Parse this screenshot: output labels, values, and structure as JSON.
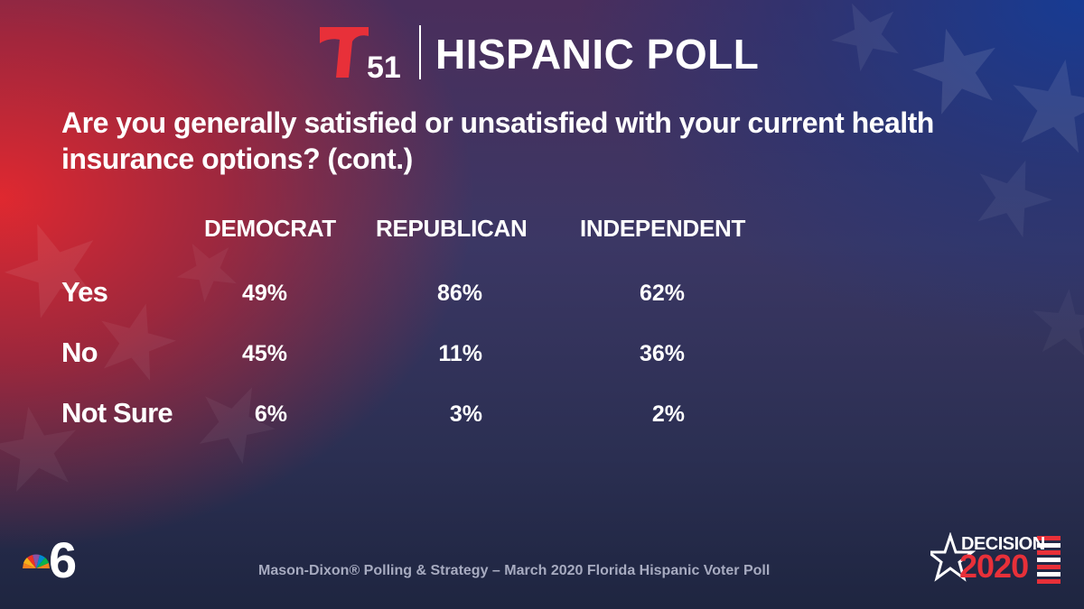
{
  "header": {
    "logo_number": "51",
    "title": "HISPANIC POLL"
  },
  "question": "Are you generally satisfied or unsatisfied with your current health insurance options? (cont.)",
  "chart_data": {
    "type": "table",
    "title": "Are you generally satisfied or unsatisfied with your current health insurance options? (cont.)",
    "columns": [
      "DEMOCRAT",
      "REPUBLICAN",
      "INDEPENDENT"
    ],
    "rows": [
      {
        "label": "Yes",
        "values": [
          "49%",
          "86%",
          "62%"
        ]
      },
      {
        "label": "No",
        "values": [
          "45%",
          "11%",
          "36%"
        ]
      },
      {
        "label": "Not Sure",
        "values": [
          "6%",
          "3%",
          "2%"
        ]
      }
    ]
  },
  "footer": {
    "source": "Mason-Dixon® Polling & Strategy – March 2020 Florida Hispanic Voter Poll",
    "left_logo_number": "6",
    "badge_word": "DECISION",
    "badge_year": "2020"
  },
  "colors": {
    "accent_red": "#e83039",
    "text": "#ffffff",
    "footer_text": "#a7abc0"
  },
  "icons": [
    "telemundo-51-logo",
    "nbc-6-logo",
    "decision-2020-logo",
    "star-pattern"
  ]
}
